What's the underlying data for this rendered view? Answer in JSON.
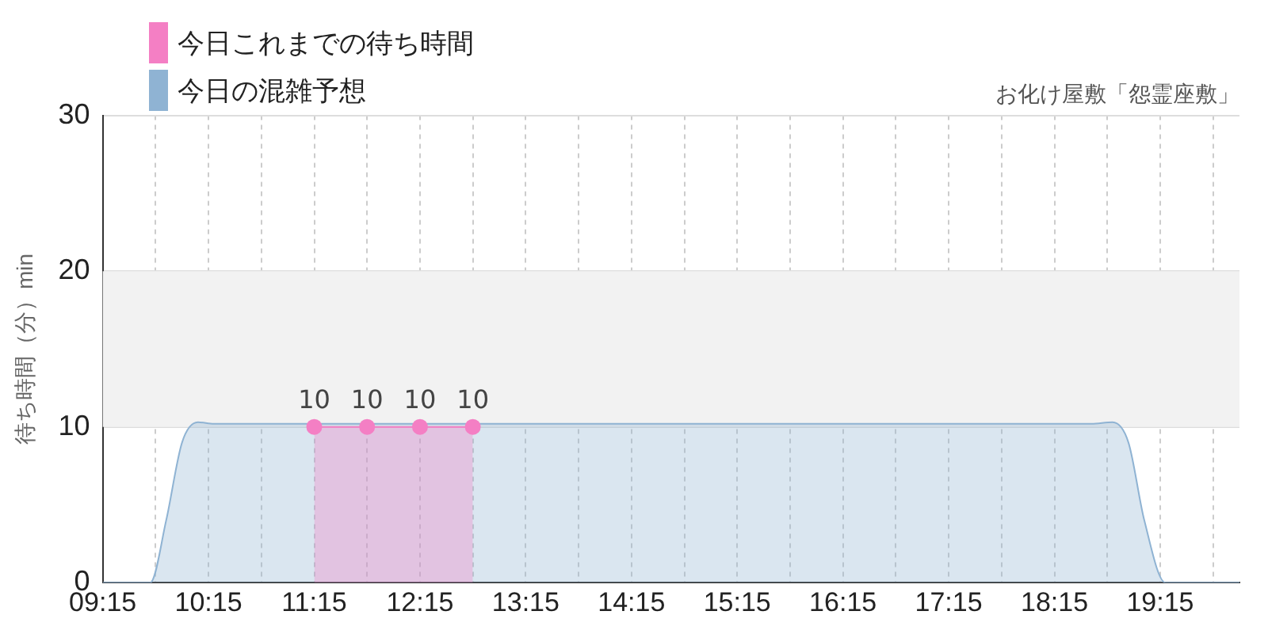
{
  "chart_data": {
    "type": "area",
    "title": "お化け屋敷「怨霊座敷」",
    "ylabel": "待ち時間（分）min",
    "xlim": [
      9.25,
      20.0
    ],
    "xticks": [
      {
        "value": 9.25,
        "label": "09:15"
      },
      {
        "value": 9.75,
        "label": null
      },
      {
        "value": 10.25,
        "label": "10:15"
      },
      {
        "value": 10.75,
        "label": null
      },
      {
        "value": 11.25,
        "label": "11:15"
      },
      {
        "value": 11.75,
        "label": null
      },
      {
        "value": 12.25,
        "label": "12:15"
      },
      {
        "value": 12.75,
        "label": null
      },
      {
        "value": 13.25,
        "label": "13:15"
      },
      {
        "value": 13.75,
        "label": null
      },
      {
        "value": 14.25,
        "label": "14:15"
      },
      {
        "value": 14.75,
        "label": null
      },
      {
        "value": 15.25,
        "label": "15:15"
      },
      {
        "value": 15.75,
        "label": null
      },
      {
        "value": 16.25,
        "label": "16:15"
      },
      {
        "value": 16.75,
        "label": null
      },
      {
        "value": 17.25,
        "label": "17:15"
      },
      {
        "value": 17.75,
        "label": null
      },
      {
        "value": 18.25,
        "label": "18:15"
      },
      {
        "value": 18.75,
        "label": null
      },
      {
        "value": 19.25,
        "label": "19:15"
      },
      {
        "value": 19.75,
        "label": null
      }
    ],
    "ylim": [
      0,
      30
    ],
    "yticks": [
      0,
      10,
      20,
      30
    ],
    "grid": true,
    "legend": "top left",
    "bands": [
      {
        "axis": "y",
        "from": 10,
        "to": 20,
        "color": "#f2f2f2"
      }
    ],
    "series": [
      {
        "name": "今日これまでの待ち時間",
        "color": "#f47fc4",
        "marker": "circle",
        "x": [
          11.25,
          11.75,
          12.25,
          12.75
        ],
        "values": [
          10,
          10,
          10,
          10
        ],
        "value_labels": [
          "10",
          "10",
          "10",
          "10"
        ]
      },
      {
        "name": "今日の混雑予想",
        "color": "#8fb3d3",
        "marker": "none",
        "x": [
          9.25,
          9.7,
          9.85,
          10.0,
          10.15,
          10.3,
          18.6,
          18.8,
          18.95,
          19.1,
          19.3,
          20.0
        ],
        "values": [
          0,
          0,
          4,
          9,
          10.3,
          10.2,
          10.2,
          10.3,
          9,
          4,
          0,
          0
        ]
      }
    ]
  }
}
